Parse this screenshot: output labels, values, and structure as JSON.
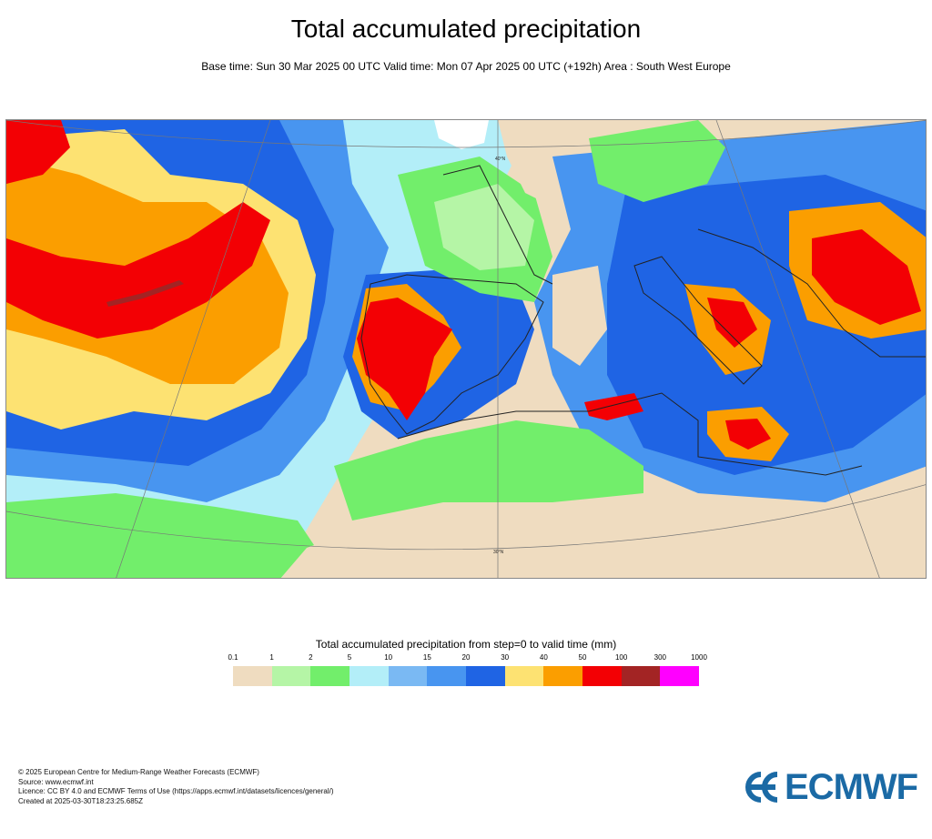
{
  "header": {
    "title": "Total accumulated precipitation",
    "subtitle": "Base time: Sun 30 Mar 2025 00 UTC Valid time: Mon 07 Apr 2025 00 UTC (+192h) Area : South West Europe"
  },
  "map": {
    "area": "South West Europe",
    "lat_labels": [
      "40°N",
      "30°N"
    ]
  },
  "legend": {
    "title": "Total accumulated precipitation from step=0 to valid time (mm)",
    "labels": [
      "0.1",
      "1",
      "2",
      "5",
      "10",
      "15",
      "20",
      "30",
      "40",
      "50",
      "100",
      "300",
      "1000"
    ],
    "colors": [
      "#efdcc0",
      "#b5f5a6",
      "#72ee6b",
      "#b3eef8",
      "#7ab9f3",
      "#4895f0",
      "#1f64e4",
      "#fde272",
      "#fb9e00",
      "#f30004",
      "#a32424",
      "#ff00ff"
    ]
  },
  "footer": {
    "line1": "© 2025 European Centre for Medium-Range Weather Forecasts (ECMWF)",
    "line2": "Source: www.ecmwf.int",
    "line3": "Licence: CC BY 4.0 and ECMWF Terms of Use (https://apps.ecmwf.int/datasets/licences/general/)",
    "line4": "Created at 2025-03-30T18:23:25.685Z"
  },
  "logo": {
    "text": "ECMWF",
    "color": "#1b6aa5"
  }
}
